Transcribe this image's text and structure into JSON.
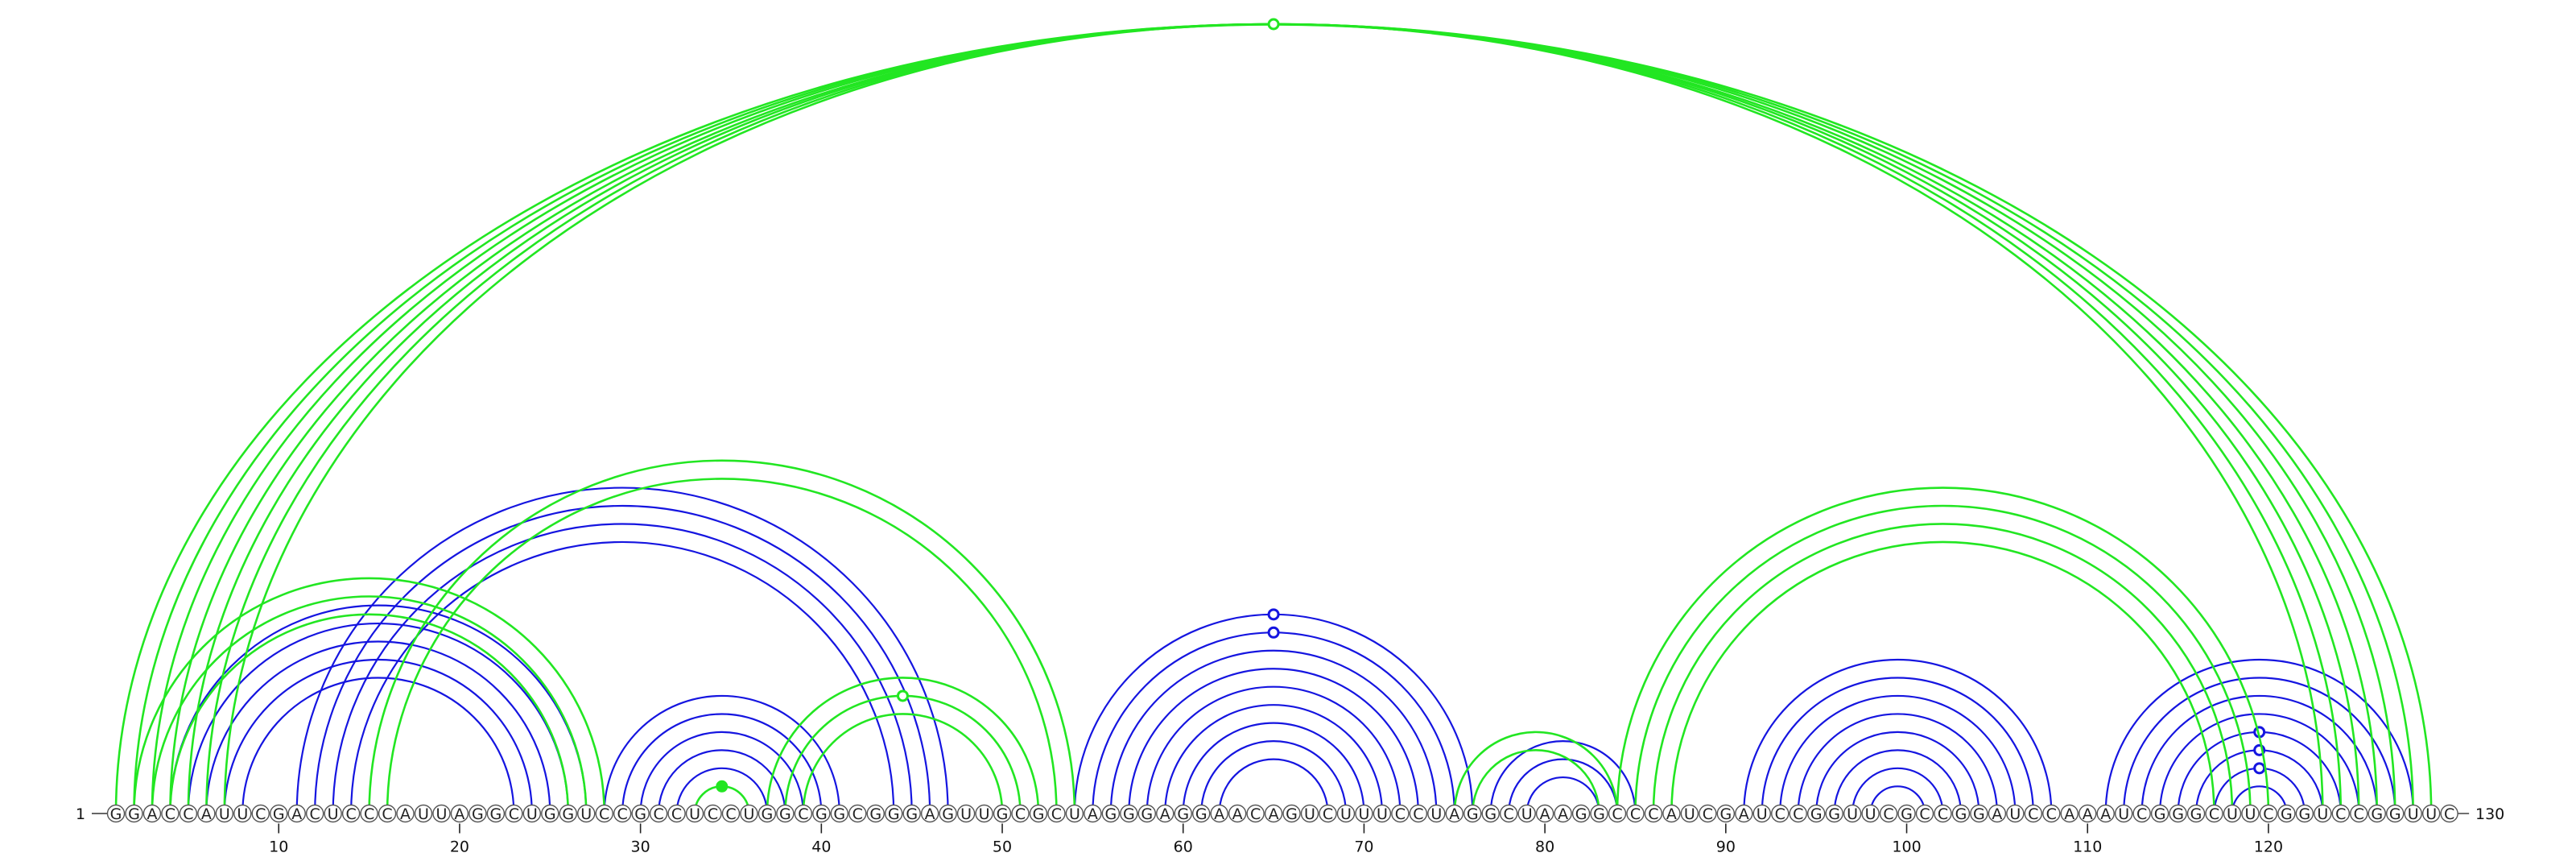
{
  "sequence": "GGACCAUUCGACUCCCAUUAGGCUGGUCCGCCUCCUGGCGGCGGGAGUUGCGCUAGGGAGGAACAGUCUUUCCUAGGCUAAGGCCCAUCGAUCCGGUUCGCCGGAUCCAAAUCGGGCUUCGGUCCGGUUC",
  "length": 130,
  "start_label": "1",
  "end_label": "130",
  "tick_labels": [
    "10",
    "20",
    "30",
    "40",
    "50",
    "60",
    "70",
    "80",
    "90",
    "100",
    "110",
    "120"
  ],
  "colors": {
    "structure_blue": "#1515e0",
    "structure_green": "#22e622",
    "nucleotide_outline": "#555555"
  },
  "tracks": [
    {
      "color": "#1515e0",
      "pairs": [
        [
          4,
          27
        ],
        [
          5,
          26
        ],
        [
          6,
          25
        ],
        [
          7,
          24
        ],
        [
          8,
          23
        ],
        [
          11,
          47
        ],
        [
          12,
          46
        ],
        [
          13,
          45
        ],
        [
          14,
          44
        ],
        [
          28,
          41
        ],
        [
          29,
          40
        ],
        [
          30,
          39
        ],
        [
          31,
          38
        ],
        [
          32,
          37
        ],
        [
          54,
          76
        ],
        [
          55,
          75
        ],
        [
          56,
          74
        ],
        [
          57,
          73
        ],
        [
          58,
          72
        ],
        [
          59,
          71
        ],
        [
          60,
          70
        ],
        [
          61,
          69
        ],
        [
          62,
          68
        ],
        [
          77,
          85
        ],
        [
          78,
          84
        ],
        [
          79,
          83
        ],
        [
          91,
          108
        ],
        [
          92,
          107
        ],
        [
          93,
          106
        ],
        [
          94,
          105
        ],
        [
          95,
          104
        ],
        [
          96,
          103
        ],
        [
          97,
          102
        ],
        [
          98,
          101
        ],
        [
          111,
          128
        ],
        [
          112,
          127
        ],
        [
          113,
          126
        ],
        [
          114,
          125
        ],
        [
          115,
          124
        ],
        [
          116,
          123
        ],
        [
          117,
          122
        ],
        [
          118,
          121
        ]
      ],
      "markers": [
        [
          64,
          false
        ],
        [
          64,
          false
        ],
        [
          79,
          false
        ],
        [
          97,
          false
        ],
        [
          118,
          false
        ],
        [
          118,
          false
        ],
        [
          118,
          false
        ]
      ]
    },
    {
      "color": "#22e622",
      "pairs": [
        [
          1,
          129
        ],
        [
          2,
          128
        ],
        [
          3,
          127
        ],
        [
          4,
          126
        ],
        [
          5,
          125
        ],
        [
          6,
          124
        ],
        [
          7,
          123
        ],
        [
          2,
          28
        ],
        [
          3,
          27
        ],
        [
          4,
          26
        ],
        [
          15,
          54
        ],
        [
          16,
          53
        ],
        [
          33,
          36
        ],
        [
          37,
          52
        ],
        [
          38,
          51
        ],
        [
          39,
          50
        ],
        [
          75,
          84
        ],
        [
          76,
          83
        ],
        [
          84,
          120
        ],
        [
          85,
          119
        ],
        [
          86,
          118
        ],
        [
          87,
          117
        ]
      ],
      "markers": [
        [
          64,
          false
        ],
        [
          45,
          false
        ],
        [
          34,
          true
        ]
      ]
    }
  ]
}
